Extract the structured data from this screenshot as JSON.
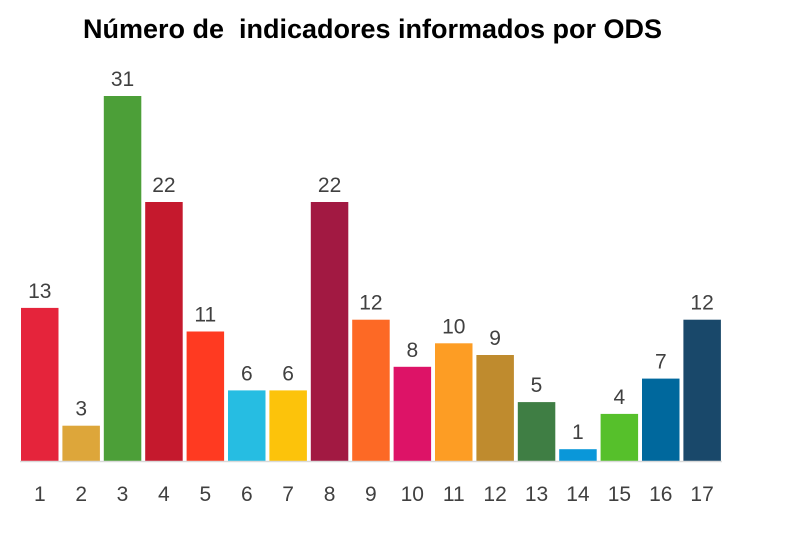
{
  "chart_data": {
    "type": "bar",
    "title": "Número de  indicadores informados por ODS",
    "xlabel": "",
    "ylabel": "",
    "ylim": [
      0,
      31
    ],
    "grid": false,
    "legend": "none",
    "categories": [
      "1",
      "2",
      "3",
      "4",
      "5",
      "6",
      "7",
      "8",
      "9",
      "10",
      "11",
      "12",
      "13",
      "14",
      "15",
      "16",
      "17"
    ],
    "values": [
      13,
      3,
      31,
      22,
      11,
      6,
      6,
      22,
      12,
      8,
      10,
      9,
      5,
      1,
      4,
      7,
      12
    ],
    "colors": [
      "#E5243B",
      "#DDA63A",
      "#4C9F38",
      "#C5192D",
      "#FF3A21",
      "#26BDE2",
      "#FCC30B",
      "#A21942",
      "#FD6925",
      "#DD1367",
      "#FD9D24",
      "#BF8B2E",
      "#3F7E44",
      "#0A97D9",
      "#56C02B",
      "#00689D",
      "#19486A"
    ],
    "axis_color": "#D9D9D9"
  }
}
